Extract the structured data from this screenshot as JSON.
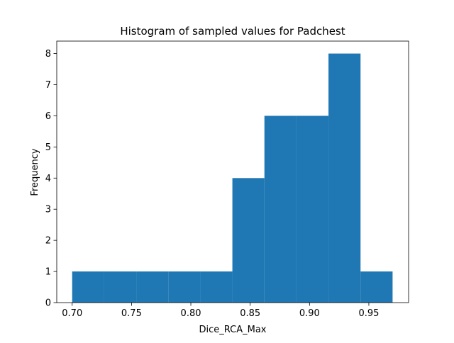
{
  "chart_data": {
    "type": "bar",
    "title": "Histogram of sampled values for Padchest",
    "xlabel": "Dice_RCA_Max",
    "ylabel": "Frequency",
    "xlim": [
      0.687,
      0.9835
    ],
    "ylim": [
      0,
      8.4
    ],
    "xticks": [
      0.7,
      0.75,
      0.8,
      0.85,
      0.9,
      0.95
    ],
    "xtick_labels": [
      "0.70",
      "0.75",
      "0.80",
      "0.85",
      "0.90",
      "0.95"
    ],
    "yticks": [
      0,
      1,
      2,
      3,
      4,
      5,
      6,
      7,
      8
    ],
    "ytick_labels": [
      "0",
      "1",
      "2",
      "3",
      "4",
      "5",
      "6",
      "7",
      "8"
    ],
    "bins": [
      {
        "x0": 0.7,
        "x1": 0.727,
        "count": 1
      },
      {
        "x0": 0.727,
        "x1": 0.754,
        "count": 1
      },
      {
        "x0": 0.754,
        "x1": 0.781,
        "count": 1
      },
      {
        "x0": 0.781,
        "x1": 0.808,
        "count": 1
      },
      {
        "x0": 0.808,
        "x1": 0.835,
        "count": 1
      },
      {
        "x0": 0.835,
        "x1": 0.862,
        "count": 4
      },
      {
        "x0": 0.862,
        "x1": 0.889,
        "count": 6
      },
      {
        "x0": 0.889,
        "x1": 0.916,
        "count": 6
      },
      {
        "x0": 0.916,
        "x1": 0.943,
        "count": 8
      },
      {
        "x0": 0.943,
        "x1": 0.97,
        "count": 1
      }
    ],
    "bar_color": "#1f77b4",
    "grid": false,
    "legend": false
  }
}
